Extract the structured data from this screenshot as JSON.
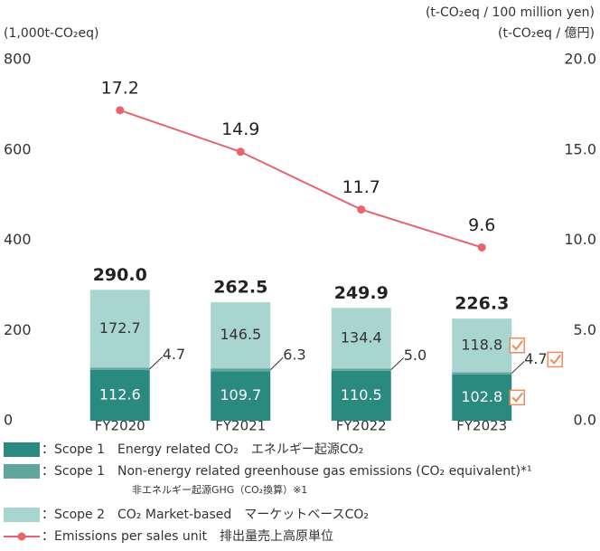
{
  "chart_data": {
    "type": "bar",
    "stacked": true,
    "y_axis_label": "(1,000t-CO₂eq)",
    "y2_axis_label": "(t-CO₂eq / 100 million yen)",
    "y2_axis_label_2": "(t-CO₂eq / 億円)",
    "categories": [
      "FY2020",
      "FY2021",
      "FY2022",
      "FY2023"
    ],
    "series": [
      {
        "name": "：Scope 1　Energy related CO₂　エネルギー起源CO₂",
        "color": "#2a8a80",
        "values": [
          112.6,
          109.7,
          110.5,
          102.8
        ]
      },
      {
        "name": "：Scope 1　Non-energy related greenhouse gas emissions (CO₂ equivalent)*¹",
        "note": "非エネルギー起源GHG（CO₂換算）※1",
        "color": "#5fa69c",
        "values": [
          4.7,
          6.3,
          5.0,
          4.7
        ],
        "value_labels": [
          "4.7",
          "6.3",
          "5.0",
          "4.7"
        ]
      },
      {
        "name": "：Scope 2　CO₂ Market-based　マーケットベースCO₂",
        "color": "#a8d5cf",
        "values": [
          172.7,
          146.5,
          134.4,
          118.8
        ]
      },
      {
        "name": "：Emissions per sales unit　排出量売上高原単位",
        "type": "line",
        "axis": "y2",
        "color": "#e8636b",
        "values": [
          17.2,
          14.9,
          11.7,
          9.6
        ]
      }
    ],
    "total_labels": [
      "290.0",
      "262.5",
      "249.9",
      "226.3"
    ],
    "ylim": [
      0,
      800
    ],
    "yticks": [
      0,
      200,
      400,
      600,
      800
    ],
    "y2lim": [
      0,
      20
    ],
    "y2ticks": [
      {
        "value": 0,
        "label": "0.0"
      },
      {
        "value": 5,
        "label": "5.0"
      },
      {
        "value": 10,
        "label": "10.0"
      },
      {
        "value": 15,
        "label": "15.0"
      },
      {
        "value": 20,
        "label": "20.0"
      }
    ]
  }
}
